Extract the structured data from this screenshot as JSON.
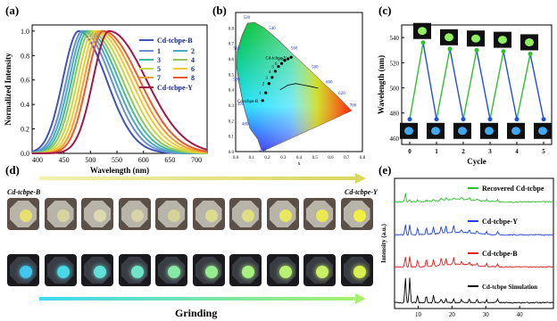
{
  "panels": {
    "a": "(a)",
    "b": "(b)",
    "c": "(c)",
    "d": "(d)",
    "e": "(e)"
  },
  "chart_data": [
    {
      "type": "line",
      "panel": "a",
      "xlabel": "Wavelength (nm)",
      "ylabel": "Normalized Intensity",
      "xlim": [
        390,
        720
      ],
      "ylim": [
        0,
        1.05
      ],
      "xticks": [
        400,
        450,
        500,
        550,
        600,
        650,
        700
      ],
      "yticks": [
        0.0,
        0.2,
        0.4,
        0.6,
        0.8,
        1.0
      ],
      "legend": [
        "Cd-tcbpe-B",
        "1",
        "2",
        "3",
        "4",
        "5",
        "6",
        "7",
        "8",
        "Cd-tcbpe-Y"
      ],
      "series": [
        {
          "name": "Cd-tcbpe-B",
          "peak": 478,
          "wl": 30,
          "wr": 52,
          "color": "#3f55b8"
        },
        {
          "name": "1",
          "peak": 485,
          "wl": 30,
          "wr": 54,
          "color": "#6a8fd0"
        },
        {
          "name": "2",
          "peak": 490,
          "wl": 30,
          "wr": 56,
          "color": "#4aa8c8"
        },
        {
          "name": "3",
          "peak": 495,
          "wl": 30,
          "wr": 58,
          "color": "#48b89a"
        },
        {
          "name": "4",
          "peak": 500,
          "wl": 30,
          "wr": 60,
          "color": "#8fc85a"
        },
        {
          "name": "5",
          "peak": 506,
          "wl": 30,
          "wr": 62,
          "color": "#c8d848"
        },
        {
          "name": "6",
          "peak": 512,
          "wl": 30,
          "wr": 64,
          "color": "#f0c838"
        },
        {
          "name": "7",
          "peak": 518,
          "wl": 30,
          "wr": 66,
          "color": "#f0a030"
        },
        {
          "name": "8",
          "peak": 524,
          "wl": 30,
          "wr": 68,
          "color": "#e85a30"
        },
        {
          "name": "Cd-tcbpe-Y",
          "peak": 535,
          "wl": 30,
          "wr": 70,
          "color": "#a01848"
        }
      ]
    },
    {
      "type": "scatter",
      "panel": "b",
      "xlabel": "x",
      "xlim": [
        0,
        0.8
      ],
      "ylim": [
        0,
        0.9
      ],
      "xticks": [
        0.0,
        0.1,
        0.2,
        0.3,
        0.4,
        0.5,
        0.6,
        0.7,
        0.8
      ],
      "yticks": [
        0.0,
        0.1,
        0.2,
        0.3,
        0.4,
        0.5,
        0.6,
        0.7,
        0.8
      ],
      "wavelength_labels": [
        "400",
        "480",
        "490",
        "500",
        "510",
        "520",
        "540",
        "560",
        "580",
        "600",
        "620",
        "700"
      ],
      "points": [
        {
          "label": "Cd-tcbpe-B",
          "x": 0.17,
          "y": 0.33
        },
        {
          "label": "1",
          "x": 0.19,
          "y": 0.38
        },
        {
          "label": "2",
          "x": 0.21,
          "y": 0.44
        },
        {
          "label": "3",
          "x": 0.23,
          "y": 0.48
        },
        {
          "label": "4",
          "x": 0.25,
          "y": 0.52
        },
        {
          "label": "5",
          "x": 0.27,
          "y": 0.55
        },
        {
          "label": "6",
          "x": 0.29,
          "y": 0.57
        },
        {
          "label": "7",
          "x": 0.31,
          "y": 0.59
        },
        {
          "label": "8",
          "x": 0.33,
          "y": 0.6
        },
        {
          "label": "Cd-tcbpe-Y",
          "x": 0.35,
          "y": 0.61
        }
      ],
      "point_labels_text": "1 2 3 4 5 6 7 8"
    },
    {
      "type": "line",
      "panel": "c",
      "xlabel": "Cycle",
      "ylabel": "Wavelength (nm)",
      "xlim": [
        -0.3,
        5.3
      ],
      "ylim": [
        455,
        550
      ],
      "xticks": [
        0,
        1,
        2,
        3,
        4,
        5
      ],
      "yticks": [
        460,
        480,
        500,
        520,
        540
      ],
      "series": [
        {
          "name": "",
          "x": [
            0,
            0.5,
            1,
            1.5,
            2,
            2.5,
            3,
            3.5,
            4,
            4.5,
            5
          ],
          "y": [
            475,
            536,
            475,
            531,
            475,
            530,
            475,
            529,
            475,
            527,
            475
          ]
        }
      ]
    },
    {
      "type": "line",
      "panel": "e",
      "xlabel": "",
      "ylabel": "Intensity (a.u.)",
      "xlim": [
        3,
        50
      ],
      "xticks": [
        10,
        20,
        30,
        40
      ],
      "series": [
        {
          "name": "Recovered Cd-tcbpe",
          "color": "#30c030"
        },
        {
          "name": "Cd-tcbpe-Y",
          "color": "#2040e0"
        },
        {
          "name": "Cd-tcbpe-B",
          "color": "#e02020"
        },
        {
          "name": "Cd-tcbpe Simulation",
          "color": "#000000"
        }
      ]
    }
  ],
  "panel_d": {
    "left_label": "Cd-tcbpe-B",
    "right_label": "Cd-tcbpe-Y",
    "caption": "Grinding",
    "top_row_spot_colors": [
      "#e6e070",
      "#d8d4a0",
      "#dcd8b0",
      "#d8d4a8",
      "#d4d49a",
      "#dcdc90",
      "#e0e080",
      "#e8e860",
      "#eaea50",
      "#f0f040"
    ],
    "bottom_row_spot_colors": [
      "#40c8f0",
      "#48d8e8",
      "#60e0d8",
      "#70e4c8",
      "#88e8a8",
      "#98ec90",
      "#a8f080",
      "#b8f070",
      "#c8f060",
      "#d8f050"
    ]
  }
}
